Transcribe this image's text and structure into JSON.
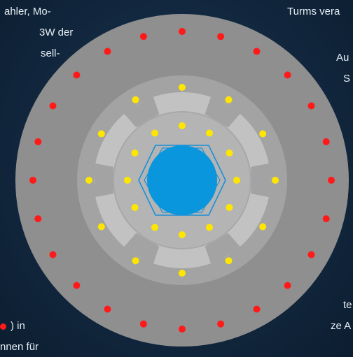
{
  "left_text": {
    "line1": "ahler,   Mo-",
    "line2": "3W  der",
    "line3": "sell-",
    "line4_suffix": ") in",
    "line5": "nnen  für"
  },
  "right_text": {
    "line1": "Turms vera",
    "line2": "Au",
    "line3": "S",
    "line4": "te",
    "line5": "ze A"
  },
  "colors": {
    "outer_ring": "#8f8f8f",
    "middle_ring": "#a3a3a3",
    "segments": "#c2c2c2",
    "inner_disk": "#b4b4b4",
    "core": "#0a96dc",
    "hexagon": "#1a8fd6",
    "red_dots": "#ff1a1a",
    "yellow_dots": "#ffe600"
  }
}
